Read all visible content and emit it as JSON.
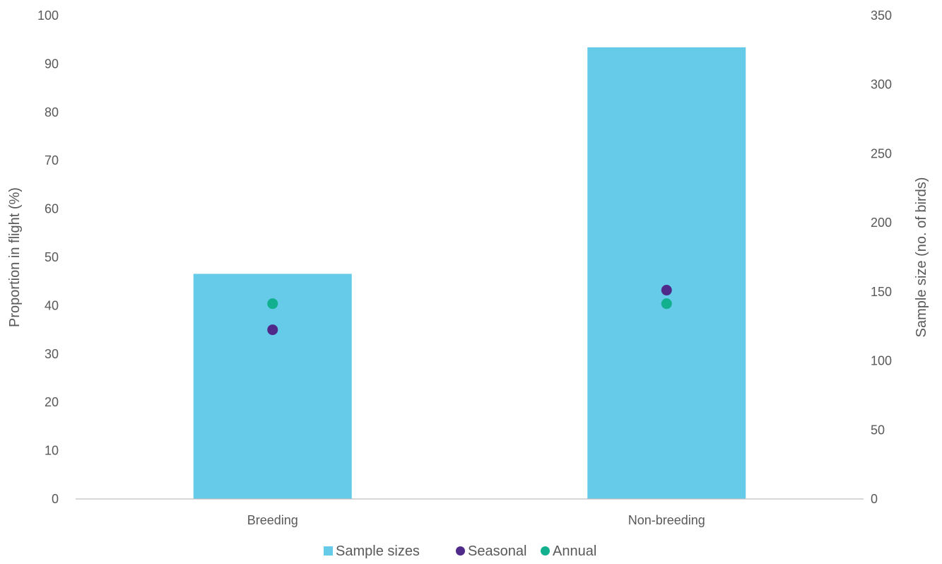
{
  "chart_data": {
    "type": "bar",
    "categories": [
      "Breeding",
      "Non-breeding"
    ],
    "bar_series": {
      "name": "Sample sizes",
      "axis": "right",
      "values": [
        163,
        327
      ],
      "color": "#66CBE8"
    },
    "point_series": [
      {
        "name": "Seasonal",
        "axis": "left",
        "values": [
          35,
          43.2
        ],
        "color": "#4F2A8A"
      },
      {
        "name": "Annual",
        "axis": "left",
        "values": [
          40.4,
          40.4
        ],
        "color": "#12B08F"
      }
    ],
    "ylabel_left": "Proportion in flight (%)",
    "ylabel_right": "Sample size (no. of birds)",
    "ylim_left": [
      0,
      100
    ],
    "ylim_right": [
      0,
      350
    ],
    "yticks_left": [
      "0",
      "10",
      "20",
      "30",
      "40",
      "50",
      "60",
      "70",
      "80",
      "90",
      "100"
    ],
    "yticks_right": [
      "0",
      "50",
      "100",
      "150",
      "200",
      "250",
      "300",
      "350"
    ],
    "legend_position": "bottom",
    "grid": false,
    "axis_color": "#BFBFBF",
    "text_color": "#595959"
  }
}
